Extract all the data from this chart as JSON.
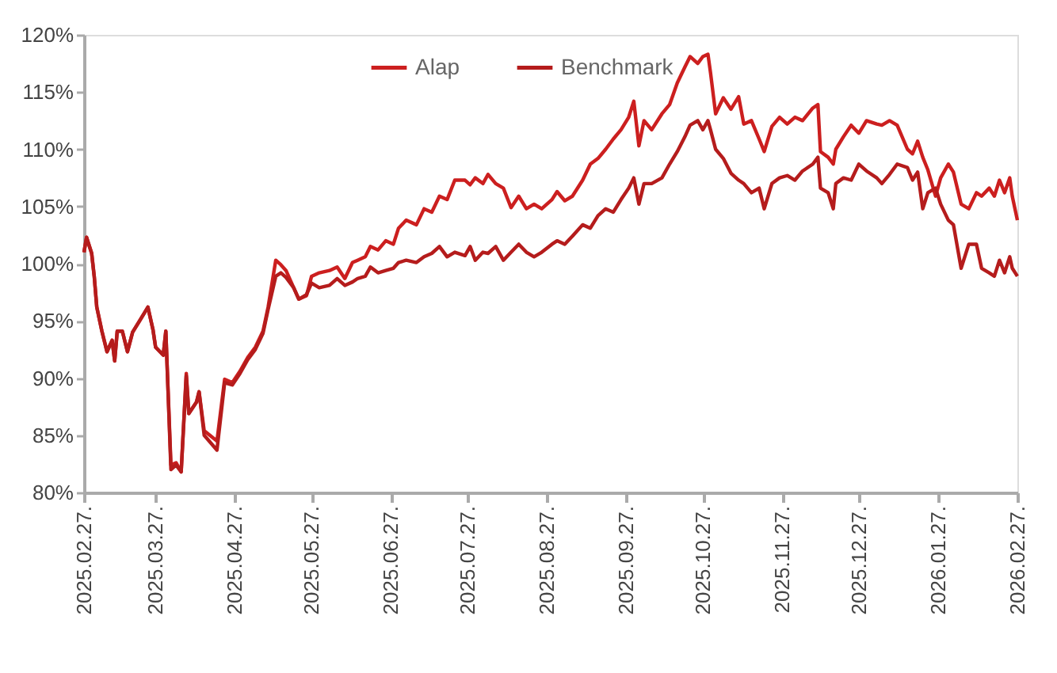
{
  "chart_data": {
    "type": "line",
    "x": [
      "2025-02-27",
      "2025-02-28",
      "2025-03-02",
      "2025-03-03",
      "2025-03-04",
      "2025-03-06",
      "2025-03-08",
      "2025-03-10",
      "2025-03-11",
      "2025-03-12",
      "2025-03-14",
      "2025-03-16",
      "2025-03-18",
      "2025-03-21",
      "2025-03-24",
      "2025-03-26",
      "2025-03-27",
      "2025-03-30",
      "2025-03-31",
      "2025-04-02",
      "2025-04-04",
      "2025-04-06",
      "2025-04-08",
      "2025-04-09",
      "2025-04-12",
      "2025-04-13",
      "2025-04-15",
      "2025-04-20",
      "2025-04-23",
      "2025-04-26",
      "2025-04-29",
      "2025-05-02",
      "2025-05-05",
      "2025-05-08",
      "2025-05-10",
      "2025-05-13",
      "2025-05-15",
      "2025-05-17",
      "2025-05-20",
      "2025-05-22",
      "2025-05-25",
      "2025-05-27",
      "2025-05-30",
      "2025-06-03",
      "2025-06-06",
      "2025-06-09",
      "2025-06-12",
      "2025-06-14",
      "2025-06-17",
      "2025-06-19",
      "2025-06-22",
      "2025-06-25",
      "2025-06-28",
      "2025-06-30",
      "2025-07-03",
      "2025-07-07",
      "2025-07-10",
      "2025-07-13",
      "2025-07-16",
      "2025-07-19",
      "2025-07-22",
      "2025-07-26",
      "2025-07-28",
      "2025-07-30",
      "2025-08-02",
      "2025-08-04",
      "2025-08-07",
      "2025-08-10",
      "2025-08-13",
      "2025-08-16",
      "2025-08-19",
      "2025-08-22",
      "2025-08-25",
      "2025-08-29",
      "2025-08-31",
      "2025-09-03",
      "2025-09-06",
      "2025-09-10",
      "2025-09-13",
      "2025-09-16",
      "2025-09-19",
      "2025-09-22",
      "2025-09-25",
      "2025-09-28",
      "2025-09-30",
      "2025-10-02",
      "2025-10-04",
      "2025-10-07",
      "2025-10-11",
      "2025-10-14",
      "2025-10-17",
      "2025-10-20",
      "2025-10-22",
      "2025-10-25",
      "2025-10-27",
      "2025-10-29",
      "2025-10-30",
      "2025-11-01",
      "2025-11-04",
      "2025-11-07",
      "2025-11-10",
      "2025-11-12",
      "2025-11-15",
      "2025-11-18",
      "2025-11-20",
      "2025-11-23",
      "2025-11-26",
      "2025-11-29",
      "2025-12-02",
      "2025-12-05",
      "2025-12-09",
      "2025-12-11",
      "2025-12-12",
      "2025-12-15",
      "2025-12-17",
      "2025-12-18",
      "2025-12-21",
      "2025-12-24",
      "2025-12-27",
      "2025-12-30",
      "2026-01-03",
      "2026-01-05",
      "2026-01-08",
      "2026-01-11",
      "2026-01-15",
      "2026-01-17",
      "2026-01-19",
      "2026-01-21",
      "2026-01-23",
      "2026-01-26",
      "2026-01-28",
      "2026-01-31",
      "2026-02-02",
      "2026-02-05",
      "2026-02-08",
      "2026-02-11",
      "2026-02-13",
      "2026-02-16",
      "2026-02-18",
      "2026-02-20",
      "2026-02-22",
      "2026-02-24",
      "2026-02-25",
      "2026-02-27"
    ],
    "series": [
      {
        "name": "Alap",
        "color": "#cc1f1f",
        "values": [
          101.0,
          102.3,
          100.9,
          98.9,
          96.2,
          94.1,
          92.3,
          93.3,
          91.5,
          94.1,
          94.1,
          92.3,
          94.0,
          95.1,
          96.2,
          94.2,
          92.7,
          92.0,
          94.1,
          82.4,
          82.6,
          81.8,
          90.4,
          86.9,
          87.9,
          88.8,
          85.4,
          84.5,
          89.9,
          89.6,
          90.6,
          91.8,
          92.7,
          94.1,
          96.2,
          100.3,
          99.9,
          99.4,
          97.9,
          96.9,
          97.2,
          98.9,
          99.2,
          99.4,
          99.7,
          98.7,
          100.1,
          100.3,
          100.6,
          101.5,
          101.2,
          102.0,
          101.7,
          103.1,
          103.8,
          103.4,
          104.8,
          104.5,
          105.9,
          105.6,
          107.3,
          107.3,
          106.9,
          107.5,
          107.0,
          107.8,
          107.0,
          106.6,
          104.9,
          105.9,
          104.8,
          105.2,
          104.8,
          105.6,
          106.3,
          105.5,
          105.9,
          107.3,
          108.7,
          109.2,
          110.0,
          110.9,
          111.7,
          112.8,
          114.2,
          110.3,
          112.5,
          111.7,
          113.1,
          113.9,
          115.8,
          117.2,
          118.1,
          117.5,
          118.1,
          118.3,
          116.7,
          113.1,
          114.5,
          113.5,
          114.6,
          112.2,
          112.5,
          110.9,
          109.8,
          112.0,
          112.8,
          112.2,
          112.8,
          112.5,
          113.6,
          113.9,
          109.8,
          109.3,
          108.7,
          110.0,
          111.1,
          112.1,
          111.4,
          112.5,
          112.2,
          112.1,
          112.5,
          112.1,
          110.0,
          109.6,
          110.7,
          109.3,
          108.2,
          105.9,
          107.5,
          108.7,
          108.0,
          105.2,
          104.8,
          106.2,
          105.9,
          106.6,
          105.9,
          107.3,
          106.2,
          107.5,
          105.9,
          103.8
        ]
      },
      {
        "name": "Benchmark",
        "color": "#b51c1c",
        "values": [
          101.0,
          102.3,
          100.9,
          98.9,
          96.2,
          94.1,
          92.3,
          93.3,
          91.5,
          94.1,
          94.1,
          92.3,
          94.0,
          95.1,
          96.2,
          94.2,
          92.7,
          92.0,
          94.1,
          82.0,
          82.4,
          81.8,
          90.2,
          86.9,
          87.9,
          88.8,
          85.0,
          83.7,
          89.6,
          89.4,
          90.4,
          91.6,
          92.5,
          93.9,
          96.0,
          98.9,
          99.2,
          98.8,
          97.9,
          96.9,
          97.3,
          98.3,
          97.9,
          98.1,
          98.7,
          98.1,
          98.4,
          98.7,
          98.9,
          99.7,
          99.2,
          99.4,
          99.6,
          100.1,
          100.3,
          100.1,
          100.6,
          100.9,
          101.5,
          100.6,
          101.0,
          100.7,
          101.5,
          100.3,
          101.0,
          100.9,
          101.5,
          100.3,
          101.0,
          101.7,
          101.0,
          100.6,
          101.0,
          101.7,
          102.0,
          101.7,
          102.4,
          103.4,
          103.1,
          104.2,
          104.8,
          104.5,
          105.6,
          106.6,
          107.5,
          105.2,
          107.0,
          107.0,
          107.5,
          108.7,
          109.8,
          111.1,
          112.1,
          112.5,
          111.7,
          112.5,
          111.7,
          110.0,
          109.2,
          107.9,
          107.3,
          107.0,
          106.2,
          106.6,
          104.8,
          107.0,
          107.5,
          107.7,
          107.3,
          108.1,
          108.7,
          109.3,
          106.6,
          106.2,
          104.8,
          107.0,
          107.5,
          107.3,
          108.7,
          108.1,
          107.5,
          107.0,
          107.8,
          108.7,
          108.4,
          107.3,
          108.0,
          104.8,
          106.2,
          106.6,
          105.2,
          103.8,
          103.4,
          99.6,
          101.7,
          101.7,
          99.6,
          99.2,
          98.9,
          100.3,
          99.2,
          100.6,
          99.6,
          98.9
        ]
      }
    ],
    "xlim": [
      "2025-02-27",
      "2026-02-27"
    ],
    "xticks": [
      {
        "value": "2025-02-27",
        "label": "2025.02.27."
      },
      {
        "value": "2025-03-27",
        "label": "2025.03.27."
      },
      {
        "value": "2025-04-27",
        "label": "2025.04.27."
      },
      {
        "value": "2025-05-27",
        "label": "2025.05.27."
      },
      {
        "value": "2025-06-27",
        "label": "2025.06.27."
      },
      {
        "value": "2025-07-27",
        "label": "2025.07.27."
      },
      {
        "value": "2025-08-27",
        "label": "2025.08.27."
      },
      {
        "value": "2025-09-27",
        "label": "2025.09.27."
      },
      {
        "value": "2025-10-27",
        "label": "2025.10.27."
      },
      {
        "value": "2025-11-27",
        "label": "2025.11.27."
      },
      {
        "value": "2025-12-27",
        "label": "2025.12.27."
      },
      {
        "value": "2026-01-27",
        "label": "2026.01.27."
      },
      {
        "value": "2026-02-27",
        "label": "2026.02.27."
      }
    ],
    "ylim": [
      80,
      120
    ],
    "yticks": [
      {
        "value": 80,
        "label": "80%"
      },
      {
        "value": 85,
        "label": "85%"
      },
      {
        "value": 90,
        "label": "90%"
      },
      {
        "value": 95,
        "label": "95%"
      },
      {
        "value": 100,
        "label": "100%"
      },
      {
        "value": 105,
        "label": "105%"
      },
      {
        "value": 110,
        "label": "110%"
      },
      {
        "value": 115,
        "label": "115%"
      },
      {
        "value": 120,
        "label": "120%"
      }
    ],
    "grid": false,
    "legend": "top",
    "marker": "none",
    "line_style": "solid"
  }
}
